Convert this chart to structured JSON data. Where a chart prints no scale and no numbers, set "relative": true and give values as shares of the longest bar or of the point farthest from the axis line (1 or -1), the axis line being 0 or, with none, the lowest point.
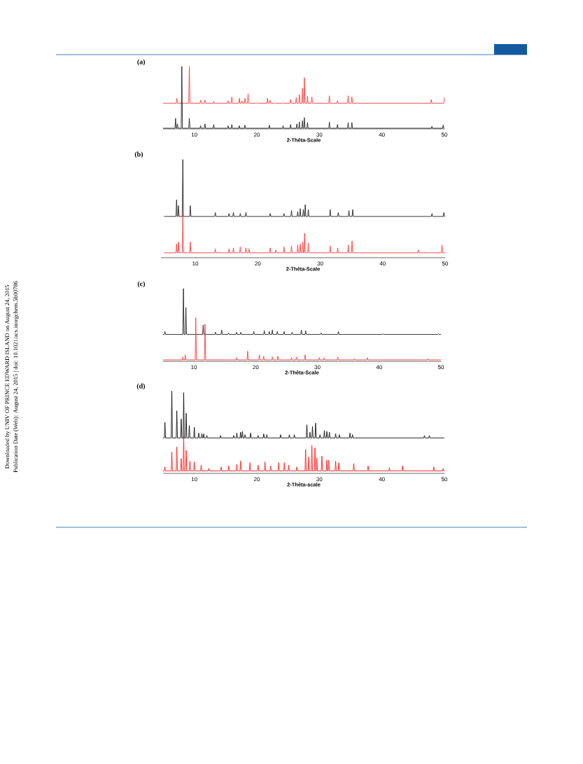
{
  "chart_data": [
    {
      "type": "line",
      "title": "(a)",
      "xlabel": "2-Thêta-Scale",
      "relative": true,
      "xlim": [
        5,
        50
      ],
      "xticks": [
        10,
        20,
        30,
        40,
        50
      ],
      "annotations": [
        "Downloaded by UNIV OF PRINCE EDWARD ISLAND on August 24, 2015",
        "Publication Date (Web): August 24, 2015 | doi: 10.1021/acs.inorgchem.5b00786"
      ],
      "series": [
        {
          "color": "#ff3b3b",
          "x": [
            5,
            7.1,
            7.2,
            7.3,
            9.1,
            9.2,
            9.3,
            10.9,
            11,
            11.1,
            11.6,
            11.7,
            11.8,
            13,
            13.1,
            13.2,
            15.3,
            15.4,
            15.5,
            15.9,
            16,
            16.1,
            17.1,
            17.2,
            17.3,
            17.5,
            17.6,
            17.7,
            18,
            18.1,
            18.2,
            18.5,
            18.6,
            18.7,
            19.8,
            19.9,
            20,
            21.6,
            21.7,
            21.8,
            22,
            22.1,
            22.2,
            22.8,
            22.9,
            23,
            24.1,
            24.2,
            24.3,
            25.3,
            25.4,
            25.5,
            26.2,
            26.3,
            26.4,
            26.7,
            26.8,
            26.9,
            27.2,
            27.3,
            27.4,
            27.5,
            27.6,
            27.7,
            28,
            28.1,
            28.2,
            28.7,
            28.8,
            28.9,
            31.5,
            31.6,
            31.7,
            32.8,
            32.9,
            33,
            34.5,
            34.6,
            34.7,
            35.1,
            35.2,
            35.3,
            36,
            36.1,
            36.2,
            47.8,
            47.9,
            48,
            49.9,
            50
          ],
          "values": [
            0.41,
            0.41,
            0.49,
            0.41,
            0.41,
            1.0,
            0.41,
            0.41,
            0.46,
            0.41,
            0.41,
            0.46,
            0.41,
            0.41,
            0.44,
            0.41,
            0.41,
            0.45,
            0.41,
            0.41,
            0.51,
            0.41,
            0.41,
            0.49,
            0.41,
            0.41,
            0.45,
            0.41,
            0.41,
            0.49,
            0.41,
            0.41,
            0.56,
            0.41,
            0.41,
            0.42,
            0.41,
            0.41,
            0.49,
            0.41,
            0.41,
            0.46,
            0.41,
            0.41,
            0.42,
            0.41,
            0.41,
            0.42,
            0.41,
            0.41,
            0.47,
            0.41,
            0.41,
            0.5,
            0.41,
            0.41,
            0.55,
            0.41,
            0.41,
            0.65,
            0.41,
            0.41,
            0.82,
            0.41,
            0.41,
            0.52,
            0.41,
            0.41,
            0.51,
            0.41,
            0.41,
            0.53,
            0.41,
            0.41,
            0.45,
            0.41,
            0.41,
            0.53,
            0.41,
            0.41,
            0.51,
            0.41,
            0.41,
            0.42,
            0.41,
            0.41,
            0.47,
            0.41,
            0.41,
            0.5
          ]
        },
        {
          "color": "#222222",
          "x": [
            5,
            6.9,
            7.0,
            7.1,
            7.2,
            7.3,
            7.4,
            7.9,
            8.0,
            8.1,
            9.1,
            9.2,
            9.3,
            10.9,
            11,
            11.1,
            11.6,
            11.7,
            11.8,
            13,
            13.1,
            13.2,
            15.3,
            15.4,
            15.5,
            15.9,
            16,
            16.1,
            17.1,
            17.2,
            17.3,
            18,
            18.1,
            18.2,
            21.9,
            22,
            22.1,
            24.1,
            24.2,
            24.3,
            25.3,
            25.4,
            25.5,
            26.3,
            26.4,
            26.5,
            26.7,
            26.8,
            26.9,
            27.2,
            27.3,
            27.4,
            27.5,
            27.6,
            27.7,
            28,
            28.1,
            28.2,
            31.5,
            31.6,
            31.7,
            32.8,
            32.9,
            33,
            34.5,
            34.6,
            34.7,
            35.1,
            35.2,
            35.3,
            47.9,
            48,
            48.1,
            49.7,
            49.8,
            49.9,
            50
          ],
          "values": [
            0.01,
            0.01,
            0.17,
            0.01,
            0.01,
            0.08,
            0.01,
            0.01,
            1.0,
            0.01,
            0.01,
            0.17,
            0.01,
            0.01,
            0.05,
            0.01,
            0.01,
            0.08,
            0.01,
            0.01,
            0.07,
            0.01,
            0.01,
            0.05,
            0.01,
            0.01,
            0.07,
            0.01,
            0.01,
            0.05,
            0.01,
            0.01,
            0.06,
            0.01,
            0.01,
            0.06,
            0.01,
            0.01,
            0.05,
            0.01,
            0.01,
            0.07,
            0.01,
            0.01,
            0.08,
            0.01,
            0.01,
            0.11,
            0.01,
            0.01,
            0.13,
            0.01,
            0.01,
            0.18,
            0.01,
            0.01,
            0.1,
            0.01,
            0.01,
            0.11,
            0.01,
            0.01,
            0.07,
            0.01,
            0.01,
            0.1,
            0.01,
            0.01,
            0.1,
            0.01,
            0.01,
            0.04,
            0.01,
            0.01,
            0.06,
            0.01,
            0.01
          ]
        }
      ]
    },
    {
      "type": "line",
      "title": "(b)",
      "xlabel": "2-Thêta-Scale",
      "relative": true,
      "xlim": [
        4.5,
        50
      ],
      "xticks": [
        10,
        20,
        30,
        40,
        50
      ],
      "series": [
        {
          "color": "#222222",
          "x": [
            5,
            6.9,
            7.0,
            7.1,
            7.2,
            7.3,
            7.4,
            7.9,
            8.0,
            8.1,
            9.1,
            9.2,
            9.3,
            13.1,
            13.2,
            13.3,
            15.3,
            15.4,
            15.5,
            16,
            16.1,
            16.2,
            17.1,
            17.2,
            17.3,
            18,
            18.1,
            18.2,
            21.9,
            22,
            22.1,
            24.1,
            24.2,
            24.3,
            25.3,
            25.4,
            25.5,
            26.3,
            26.4,
            26.5,
            26.7,
            26.8,
            26.9,
            27.2,
            27.3,
            27.4,
            27.5,
            27.6,
            27.7,
            28,
            28.1,
            28.2,
            31.5,
            31.6,
            31.7,
            32.8,
            32.9,
            33,
            34.5,
            34.6,
            34.7,
            35.1,
            35.2,
            35.3,
            47.8,
            47.9,
            48,
            49.7,
            49.8,
            49.9,
            50
          ],
          "values": [
            0.42,
            0.42,
            0.59,
            0.42,
            0.42,
            0.53,
            0.42,
            0.42,
            1.0,
            0.42,
            0.42,
            0.53,
            0.42,
            0.42,
            0.46,
            0.42,
            0.42,
            0.45,
            0.42,
            0.42,
            0.46,
            0.42,
            0.42,
            0.45,
            0.42,
            0.42,
            0.46,
            0.42,
            0.42,
            0.45,
            0.42,
            0.42,
            0.45,
            0.42,
            0.42,
            0.48,
            0.42,
            0.42,
            0.47,
            0.42,
            0.42,
            0.5,
            0.42,
            0.42,
            0.49,
            0.42,
            0.42,
            0.54,
            0.42,
            0.42,
            0.49,
            0.42,
            0.42,
            0.49,
            0.42,
            0.42,
            0.46,
            0.42,
            0.42,
            0.48,
            0.42,
            0.42,
            0.49,
            0.42,
            0.42,
            0.45,
            0.42,
            0.42,
            0.46,
            0.42,
            0.42
          ]
        },
        {
          "color": "#ff3b3b",
          "x": [
            5,
            6.9,
            7.0,
            7.1,
            7.2,
            7.3,
            7.4,
            7.9,
            8.0,
            8.1,
            9.1,
            9.2,
            9.3,
            13.1,
            13.2,
            13.3,
            15.3,
            15.4,
            15.5,
            16,
            16.1,
            16.2,
            17.1,
            17.2,
            17.3,
            18,
            18.1,
            18.2,
            18.5,
            18.6,
            18.7,
            21.9,
            22,
            22.1,
            22.8,
            22.9,
            23,
            24.1,
            24.2,
            24.3,
            25.3,
            25.4,
            25.5,
            26.3,
            26.4,
            26.5,
            26.7,
            26.8,
            26.9,
            27.1,
            27.2,
            27.3,
            27.4,
            27.5,
            27.6,
            28,
            28.1,
            28.2,
            31.5,
            31.6,
            31.7,
            32.7,
            32.8,
            32.9,
            34.4,
            34.5,
            34.6,
            35,
            35.1,
            35.2,
            45.6,
            45.7,
            45.8,
            49.4,
            49.5,
            49.6,
            50
          ],
          "values": [
            0.05,
            0.05,
            0.14,
            0.05,
            0.05,
            0.16,
            0.05,
            0.05,
            0.44,
            0.05,
            0.05,
            0.16,
            0.05,
            0.05,
            0.09,
            0.05,
            0.05,
            0.09,
            0.05,
            0.05,
            0.1,
            0.05,
            0.05,
            0.11,
            0.05,
            0.05,
            0.1,
            0.05,
            0.05,
            0.09,
            0.05,
            0.05,
            0.1,
            0.05,
            0.05,
            0.08,
            0.05,
            0.05,
            0.11,
            0.05,
            0.05,
            0.12,
            0.05,
            0.05,
            0.13,
            0.05,
            0.05,
            0.14,
            0.05,
            0.05,
            0.16,
            0.05,
            0.05,
            0.25,
            0.05,
            0.05,
            0.15,
            0.05,
            0.05,
            0.12,
            0.05,
            0.05,
            0.1,
            0.05,
            0.05,
            0.13,
            0.05,
            0.05,
            0.17,
            0.05,
            0.05,
            0.08,
            0.05,
            0.05,
            0.13,
            0.05,
            0.05
          ]
        }
      ]
    },
    {
      "type": "line",
      "title": "(c)",
      "xlabel": "2-Thêta-Scale",
      "relative": true,
      "xlim": [
        5,
        50
      ],
      "xticks": [
        10,
        20,
        30,
        40,
        50
      ],
      "series": [
        {
          "color": "#222222",
          "x": [
            5,
            5.2,
            5.3,
            5.4,
            8.2,
            8.3,
            8.4,
            8.6,
            8.7,
            8.8,
            11.4,
            11.5,
            11.6,
            13.4,
            13.5,
            13.6,
            14.4,
            14.5,
            14.6,
            15.5,
            15.6,
            15.7,
            16.8,
            16.9,
            17,
            17.5,
            17.6,
            17.7,
            19.6,
            19.7,
            19.8,
            21.3,
            21.4,
            21.5,
            22.1,
            22.2,
            22.3,
            22.6,
            22.7,
            22.8,
            23.4,
            23.5,
            23.6,
            24.5,
            24.6,
            24.7,
            25.8,
            25.9,
            26,
            27.3,
            27.4,
            27.5,
            28,
            28.1,
            28.2,
            30.5,
            30.6,
            30.7,
            33.3,
            33.4,
            33.5,
            40.5,
            40.6,
            40.7,
            49.5,
            49.6,
            49.7,
            50
          ],
          "values": [
            0.37,
            0.37,
            0.41,
            0.37,
            0.37,
            1.0,
            0.37,
            0.37,
            0.74,
            0.37,
            0.37,
            0.5,
            0.37,
            0.37,
            0.4,
            0.37,
            0.37,
            0.43,
            0.37,
            0.37,
            0.39,
            0.37,
            0.37,
            0.4,
            0.37,
            0.37,
            0.4,
            0.37,
            0.37,
            0.41,
            0.37,
            0.37,
            0.42,
            0.37,
            0.37,
            0.41,
            0.37,
            0.37,
            0.43,
            0.37,
            0.37,
            0.41,
            0.37,
            0.37,
            0.41,
            0.37,
            0.37,
            0.4,
            0.37,
            0.37,
            0.43,
            0.37,
            0.37,
            0.42,
            0.37,
            0.37,
            0.39,
            0.37,
            0.37,
            0.41,
            0.37,
            0.37,
            0.38,
            0.37,
            0.37,
            0.38,
            0.37,
            0.37
          ]
        },
        {
          "color": "#ff3b3b",
          "x": [
            5,
            8.1,
            8.2,
            8.3,
            8.5,
            8.6,
            8.7,
            10.2,
            10.3,
            10.4,
            11.7,
            11.8,
            11.9,
            16.8,
            16.9,
            17,
            18.6,
            18.7,
            18.8,
            20.5,
            20.6,
            20.7,
            21.2,
            21.3,
            21.4,
            22.6,
            22.7,
            22.8,
            23.5,
            23.6,
            23.7,
            25.7,
            25.8,
            25.9,
            26.5,
            26.6,
            26.7,
            27.9,
            28,
            28.1,
            30.2,
            30.3,
            30.4,
            31,
            31.1,
            31.2,
            33.2,
            33.3,
            33.4,
            35.9,
            36,
            36.1,
            38,
            38.1,
            38.2,
            47.8,
            47.9,
            48,
            50
          ],
          "values": [
            0.02,
            0.02,
            0.06,
            0.02,
            0.02,
            0.09,
            0.02,
            0.02,
            0.6,
            0.02,
            0.02,
            0.51,
            0.02,
            0.02,
            0.05,
            0.02,
            0.02,
            0.14,
            0.02,
            0.02,
            0.09,
            0.02,
            0.02,
            0.07,
            0.02,
            0.02,
            0.06,
            0.02,
            0.02,
            0.07,
            0.02,
            0.02,
            0.05,
            0.02,
            0.02,
            0.06,
            0.02,
            0.02,
            0.09,
            0.02,
            0.02,
            0.05,
            0.02,
            0.02,
            0.05,
            0.02,
            0.02,
            0.06,
            0.02,
            0.02,
            0.04,
            0.02,
            0.02,
            0.05,
            0.02,
            0.02,
            0.04,
            0.02,
            0.02
          ]
        }
      ]
    },
    {
      "type": "line",
      "title": "(d)",
      "xlabel": "2-Thêta-scale",
      "relative": true,
      "xlim": [
        5,
        50
      ],
      "xticks": [
        10,
        20,
        30,
        40,
        50
      ],
      "series": [
        {
          "color": "#111111",
          "x": [
            5,
            5.2,
            5.3,
            5.4,
            6.3,
            6.4,
            6.5,
            7.1,
            7.2,
            7.3,
            7.8,
            7.9,
            8.0,
            8.2,
            8.3,
            8.4,
            8.6,
            8.7,
            8.8,
            9.1,
            9.2,
            9.3,
            9.9,
            10,
            10.1,
            10.6,
            10.7,
            10.8,
            11.1,
            11.2,
            11.3,
            11.4,
            11.5,
            11.6,
            11.9,
            12,
            12.1,
            14.1,
            14.2,
            14.3,
            16.2,
            16.3,
            16.4,
            16.7,
            16.8,
            16.9,
            17.3,
            17.4,
            17.5,
            17.6,
            17.7,
            17.8,
            18,
            18.1,
            18.2,
            18.9,
            19,
            19.1,
            20.1,
            20.2,
            20.3,
            21,
            21.1,
            21.2,
            21.5,
            21.6,
            21.7,
            23.7,
            23.8,
            23.9,
            25.1,
            25.2,
            25.3,
            25.9,
            26,
            26.1,
            27.9,
            28,
            28.1,
            28.4,
            28.5,
            28.6,
            28.8,
            28.9,
            29,
            29.3,
            29.4,
            29.5,
            30,
            30.1,
            30.2,
            30.7,
            30.8,
            30.9,
            31.1,
            31.2,
            31.3,
            31.5,
            31.6,
            31.7,
            32.5,
            32.6,
            32.7,
            33.1,
            33.2,
            33.3,
            34.8,
            34.9,
            35,
            35.2,
            35.3,
            35.4,
            46.7,
            46.8,
            46.9,
            47.5,
            47.6,
            47.7,
            50
          ],
          "values": [
            0.43,
            0.43,
            0.62,
            0.43,
            0.43,
            1.0,
            0.43,
            0.43,
            0.76,
            0.43,
            0.43,
            0.66,
            0.43,
            0.43,
            0.98,
            0.43,
            0.43,
            0.73,
            0.43,
            0.43,
            0.58,
            0.43,
            0.43,
            0.56,
            0.43,
            0.43,
            0.49,
            0.43,
            0.43,
            0.48,
            0.43,
            0.43,
            0.48,
            0.43,
            0.43,
            0.46,
            0.43,
            0.43,
            0.46,
            0.43,
            0.43,
            0.46,
            0.43,
            0.43,
            0.49,
            0.43,
            0.43,
            0.5,
            0.43,
            0.43,
            0.51,
            0.43,
            0.43,
            0.47,
            0.43,
            0.43,
            0.49,
            0.43,
            0.43,
            0.46,
            0.43,
            0.43,
            0.48,
            0.43,
            0.43,
            0.47,
            0.43,
            0.43,
            0.47,
            0.43,
            0.43,
            0.47,
            0.43,
            0.43,
            0.47,
            0.43,
            0.43,
            0.59,
            0.43,
            0.43,
            0.5,
            0.43,
            0.43,
            0.57,
            0.43,
            0.43,
            0.61,
            0.43,
            0.43,
            0.47,
            0.43,
            0.43,
            0.52,
            0.43,
            0.43,
            0.51,
            0.43,
            0.43,
            0.5,
            0.43,
            0.43,
            0.48,
            0.43,
            0.43,
            0.47,
            0.43,
            0.43,
            0.49,
            0.43,
            0.43,
            0.47,
            0.43,
            0.43,
            0.46,
            0.43,
            0.43,
            0.46,
            0.43,
            0.43
          ]
        },
        {
          "color": "#ff1a1a",
          "x": [
            5,
            5.2,
            5.3,
            5.4,
            6.3,
            6.4,
            6.5,
            7.1,
            7.2,
            7.3,
            7.8,
            7.9,
            8.0,
            8.2,
            8.3,
            8.4,
            8.6,
            8.7,
            8.8,
            9.2,
            9.3,
            9.4,
            9.9,
            10,
            10.1,
            11,
            11.1,
            11.2,
            12.2,
            12.3,
            12.4,
            14.2,
            14.3,
            14.4,
            15.4,
            15.5,
            15.6,
            16.7,
            16.8,
            16.9,
            17.3,
            17.4,
            17.5,
            18.8,
            18.9,
            19,
            20.1,
            20.2,
            20.3,
            21.2,
            21.3,
            21.4,
            22.1,
            22.2,
            22.3,
            23.4,
            23.5,
            23.6,
            24.3,
            24.4,
            24.5,
            25,
            25.1,
            25.2,
            26.3,
            26.4,
            26.5,
            27.7,
            27.8,
            27.9,
            28.2,
            28.3,
            28.4,
            28.7,
            28.8,
            28.9,
            29.2,
            29.3,
            29.4,
            29.5,
            29.6,
            29.7,
            30.3,
            30.4,
            30.5,
            31.1,
            31.2,
            31.3,
            31.4,
            31.5,
            31.6,
            32.5,
            32.6,
            32.7,
            33,
            33.1,
            33.2,
            35.4,
            35.5,
            35.6,
            37.7,
            37.8,
            37.9,
            41.1,
            41.2,
            41.3,
            43.2,
            43.3,
            43.4,
            48.2,
            48.3,
            48.4,
            49.7,
            49.8,
            49.9,
            50
          ],
          "values": [
            0.03,
            0.03,
            0.08,
            0.03,
            0.03,
            0.26,
            0.03,
            0.03,
            0.32,
            0.03,
            0.03,
            0.18,
            0.03,
            0.03,
            0.44,
            0.03,
            0.03,
            0.28,
            0.03,
            0.03,
            0.15,
            0.03,
            0.03,
            0.14,
            0.03,
            0.03,
            0.1,
            0.03,
            0.03,
            0.06,
            0.03,
            0.03,
            0.08,
            0.03,
            0.03,
            0.09,
            0.03,
            0.03,
            0.11,
            0.03,
            0.03,
            0.15,
            0.03,
            0.03,
            0.13,
            0.03,
            0.03,
            0.1,
            0.03,
            0.03,
            0.14,
            0.03,
            0.03,
            0.09,
            0.03,
            0.03,
            0.13,
            0.03,
            0.03,
            0.13,
            0.03,
            0.03,
            0.1,
            0.03,
            0.03,
            0.08,
            0.03,
            0.03,
            0.29,
            0.03,
            0.03,
            0.2,
            0.03,
            0.03,
            0.34,
            0.03,
            0.03,
            0.31,
            0.03,
            0.03,
            0.19,
            0.03,
            0.03,
            0.21,
            0.03,
            0.03,
            0.16,
            0.03,
            0.03,
            0.16,
            0.03,
            0.03,
            0.15,
            0.03,
            0.03,
            0.13,
            0.03,
            0.03,
            0.12,
            0.03,
            0.03,
            0.09,
            0.03,
            0.03,
            0.07,
            0.03,
            0.03,
            0.09,
            0.03,
            0.03,
            0.08,
            0.03,
            0.03,
            0.06,
            0.03,
            0.03
          ]
        }
      ]
    }
  ]
}
